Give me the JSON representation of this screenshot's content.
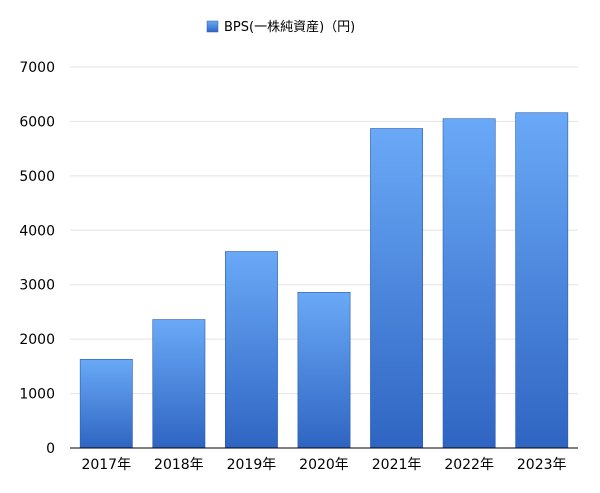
{
  "chart_data": {
    "type": "bar",
    "title": "",
    "xlabel": "",
    "ylabel": "",
    "categories": [
      "2017年",
      "2018年",
      "2019年",
      "2020年",
      "2021年",
      "2022年",
      "2023年"
    ],
    "series": [
      {
        "name": "BPS(一株純資産)（円)",
        "values": [
          1630,
          2360,
          3610,
          2860,
          5870,
          6050,
          6160
        ],
        "color_top": "#6aa9f7",
        "color_bottom": "#2f65c2"
      }
    ],
    "ylim": [
      0,
      7000
    ],
    "yticks": [
      0,
      1000,
      2000,
      3000,
      4000,
      5000,
      6000,
      7000
    ],
    "grid": true,
    "legend": {
      "position": "top-center",
      "label": "BPS(一株純資産)（円)"
    }
  }
}
